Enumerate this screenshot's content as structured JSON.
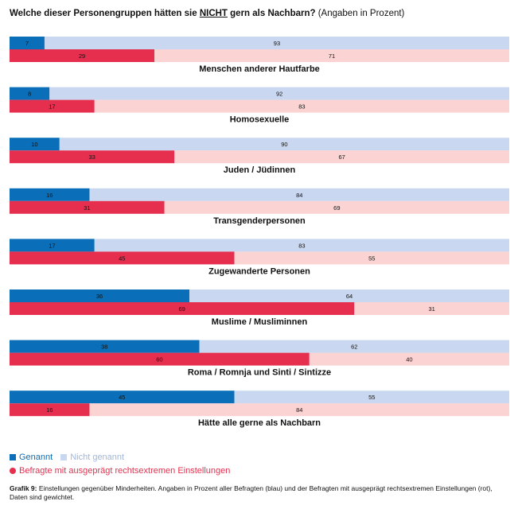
{
  "title": {
    "part1": "Welche dieser Personengruppen hätten sie ",
    "emphasis": "NICHT",
    "part2": " gern als Nachbarn?",
    "note": " (Angaben in Prozent)"
  },
  "colors": {
    "genannt": "#0a6fb8",
    "nicht_genannt": "#c9d8f0",
    "rechtsextrem": "#e62f4f",
    "rechtsextrem_rest": "#fbd3d3"
  },
  "legend": {
    "genannt": "Genannt",
    "nicht_genannt": "Nicht genannt",
    "rechtsextrem": "Befragte mit ausgeprägt rechtsextremen Einstellungen"
  },
  "footnote": {
    "label": "Grafik 9:",
    "text": " Einstellungen gegenüber Minderheiten. Angaben in Prozent aller Befragten (blau) und der Befragten mit ausgeprägt rechtsextremen Einstellungen (rot), Daten sind gewichtet."
  },
  "chart_data": {
    "type": "bar",
    "orientation": "horizontal",
    "stacked": true,
    "categories": [
      "Menschen anderer Hautfarbe",
      "Homosexuelle",
      "Juden / Jüdinnen",
      "Transgenderpersonen",
      "Zugewanderte Personen",
      "Muslime / Musliminnen",
      "Roma / Romnja und Sinti / Sintizze",
      "Hätte alle gerne als Nachbarn"
    ],
    "groups": [
      {
        "name": "Alle Befragte",
        "series": [
          {
            "name": "Genannt",
            "values": [
              7,
              8,
              10,
              16,
              17,
              36,
              38,
              45
            ]
          },
          {
            "name": "Nicht genannt",
            "values": [
              93,
              92,
              90,
              84,
              83,
              64,
              62,
              55
            ]
          }
        ]
      },
      {
        "name": "Befragte mit ausgeprägt rechtsextremen Einstellungen",
        "series": [
          {
            "name": "Genannt",
            "values": [
              29,
              17,
              33,
              31,
              45,
              69,
              60,
              16
            ]
          },
          {
            "name": "Nicht genannt",
            "values": [
              71,
              83,
              67,
              69,
              55,
              31,
              40,
              84
            ]
          }
        ]
      }
    ],
    "xlim": [
      0,
      100
    ],
    "unit": "%",
    "legend_position": "bottom-left"
  }
}
